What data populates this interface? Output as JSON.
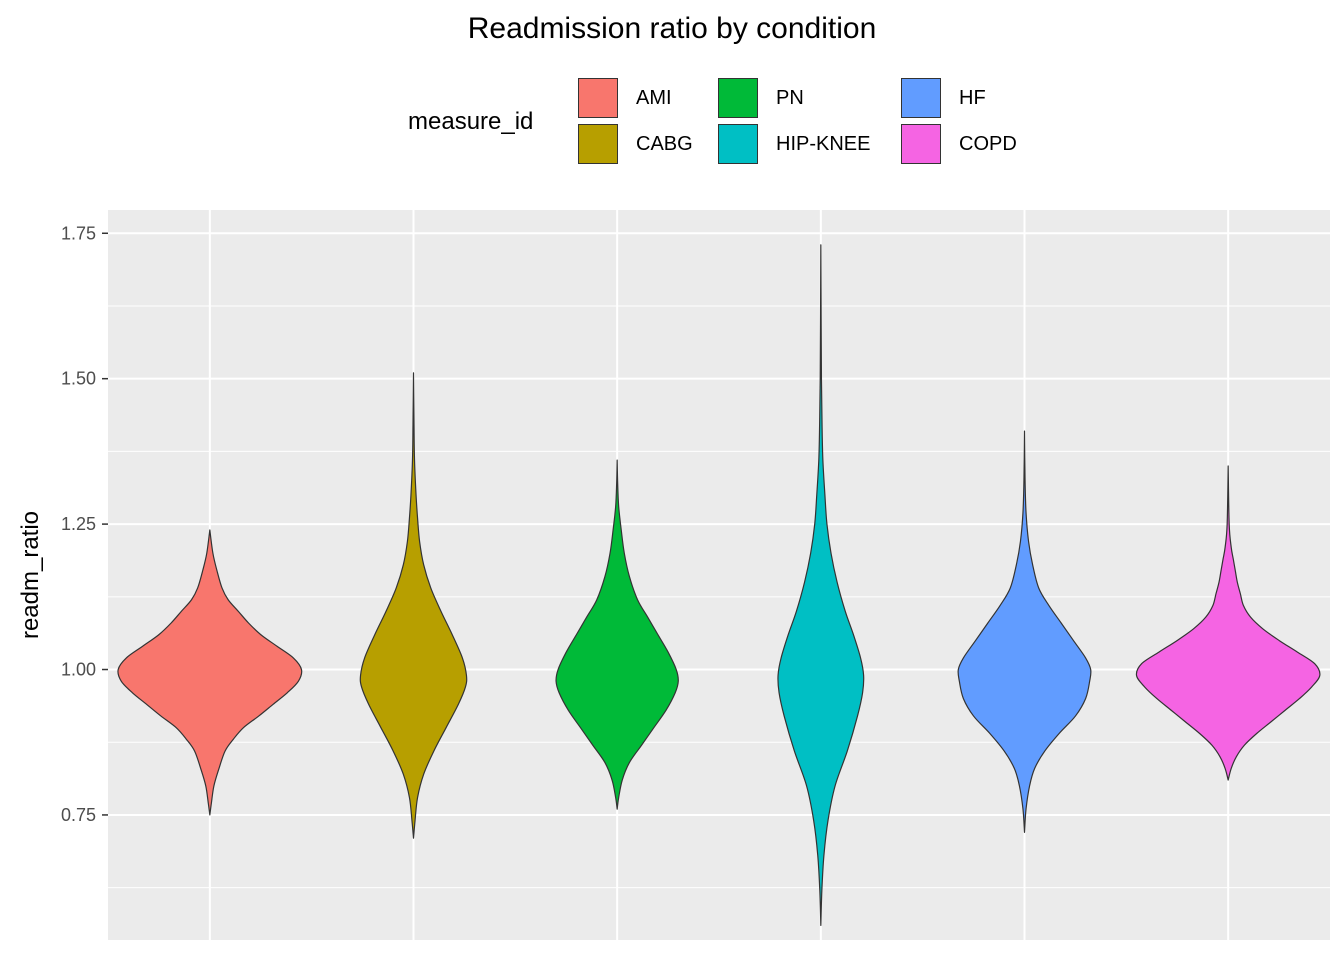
{
  "chart_data": {
    "type": "violin",
    "title": "Readmission ratio by condition",
    "xlabel": "",
    "ylabel": "readm_ratio",
    "ylim": [
      0.535,
      1.79
    ],
    "y_ticks": [
      0.75,
      1.0,
      1.25,
      1.5,
      1.75
    ],
    "y_tick_labels": [
      "0.75",
      "1.00",
      "1.25",
      "1.50",
      "1.75"
    ],
    "grid": true,
    "legend": {
      "title": "measure_id",
      "position": "top",
      "entries": [
        "AMI",
        "CABG",
        "PN",
        "HIP-KNEE",
        "HF",
        "COPD"
      ]
    },
    "series": [
      {
        "name": "AMI",
        "color": "#F8766D",
        "min": 0.75,
        "max": 1.24,
        "max_halfwidth": 0.9,
        "profile": [
          [
            0.75,
            0.0
          ],
          [
            0.77,
            0.015
          ],
          [
            0.8,
            0.04
          ],
          [
            0.83,
            0.09
          ],
          [
            0.86,
            0.15
          ],
          [
            0.88,
            0.23
          ],
          [
            0.9,
            0.33
          ],
          [
            0.92,
            0.48
          ],
          [
            0.94,
            0.62
          ],
          [
            0.96,
            0.76
          ],
          [
            0.98,
            0.87
          ],
          [
            1.0,
            0.9
          ],
          [
            1.02,
            0.82
          ],
          [
            1.04,
            0.66
          ],
          [
            1.06,
            0.5
          ],
          [
            1.08,
            0.38
          ],
          [
            1.1,
            0.28
          ],
          [
            1.12,
            0.18
          ],
          [
            1.14,
            0.12
          ],
          [
            1.17,
            0.07
          ],
          [
            1.2,
            0.03
          ],
          [
            1.24,
            0.0
          ]
        ]
      },
      {
        "name": "CABG",
        "color": "#B79F00",
        "min": 0.71,
        "max": 1.51,
        "max_halfwidth": 0.52,
        "profile": [
          [
            0.71,
            0.0
          ],
          [
            0.74,
            0.015
          ],
          [
            0.78,
            0.04
          ],
          [
            0.82,
            0.1
          ],
          [
            0.86,
            0.2
          ],
          [
            0.9,
            0.32
          ],
          [
            0.94,
            0.44
          ],
          [
            0.97,
            0.51
          ],
          [
            0.99,
            0.52
          ],
          [
            1.02,
            0.48
          ],
          [
            1.06,
            0.38
          ],
          [
            1.1,
            0.27
          ],
          [
            1.14,
            0.17
          ],
          [
            1.18,
            0.1
          ],
          [
            1.22,
            0.06
          ],
          [
            1.26,
            0.04
          ],
          [
            1.3,
            0.025
          ],
          [
            1.36,
            0.01
          ],
          [
            1.42,
            0.005
          ],
          [
            1.51,
            0.0
          ]
        ]
      },
      {
        "name": "PN",
        "color": "#00BA38",
        "min": 0.76,
        "max": 1.36,
        "max_halfwidth": 0.6,
        "profile": [
          [
            0.76,
            0.0
          ],
          [
            0.78,
            0.015
          ],
          [
            0.81,
            0.05
          ],
          [
            0.84,
            0.12
          ],
          [
            0.87,
            0.24
          ],
          [
            0.9,
            0.36
          ],
          [
            0.93,
            0.48
          ],
          [
            0.96,
            0.57
          ],
          [
            0.98,
            0.6
          ],
          [
            1.0,
            0.58
          ],
          [
            1.03,
            0.5
          ],
          [
            1.06,
            0.4
          ],
          [
            1.09,
            0.3
          ],
          [
            1.12,
            0.2
          ],
          [
            1.16,
            0.12
          ],
          [
            1.2,
            0.07
          ],
          [
            1.24,
            0.04
          ],
          [
            1.28,
            0.015
          ],
          [
            1.32,
            0.005
          ],
          [
            1.36,
            0.0
          ]
        ]
      },
      {
        "name": "HIP-KNEE",
        "color": "#00BFC4",
        "min": 0.56,
        "max": 1.73,
        "max_halfwidth": 0.42,
        "profile": [
          [
            0.56,
            0.0
          ],
          [
            0.62,
            0.01
          ],
          [
            0.68,
            0.03
          ],
          [
            0.74,
            0.07
          ],
          [
            0.8,
            0.14
          ],
          [
            0.86,
            0.26
          ],
          [
            0.92,
            0.36
          ],
          [
            0.96,
            0.41
          ],
          [
            0.99,
            0.42
          ],
          [
            1.02,
            0.39
          ],
          [
            1.06,
            0.32
          ],
          [
            1.1,
            0.24
          ],
          [
            1.15,
            0.16
          ],
          [
            1.2,
            0.1
          ],
          [
            1.25,
            0.06
          ],
          [
            1.3,
            0.04
          ],
          [
            1.36,
            0.02
          ],
          [
            1.42,
            0.012
          ],
          [
            1.5,
            0.006
          ],
          [
            1.6,
            0.003
          ],
          [
            1.73,
            0.0
          ]
        ]
      },
      {
        "name": "HF",
        "color": "#619CFF",
        "min": 0.72,
        "max": 1.41,
        "max_halfwidth": 0.65,
        "profile": [
          [
            0.72,
            0.0
          ],
          [
            0.76,
            0.015
          ],
          [
            0.8,
            0.05
          ],
          [
            0.83,
            0.1
          ],
          [
            0.86,
            0.2
          ],
          [
            0.89,
            0.34
          ],
          [
            0.92,
            0.5
          ],
          [
            0.95,
            0.6
          ],
          [
            0.98,
            0.64
          ],
          [
            1.0,
            0.65
          ],
          [
            1.02,
            0.6
          ],
          [
            1.05,
            0.48
          ],
          [
            1.08,
            0.36
          ],
          [
            1.11,
            0.24
          ],
          [
            1.14,
            0.14
          ],
          [
            1.18,
            0.08
          ],
          [
            1.22,
            0.04
          ],
          [
            1.27,
            0.015
          ],
          [
            1.33,
            0.005
          ],
          [
            1.41,
            0.0
          ]
        ]
      },
      {
        "name": "COPD",
        "color": "#F564E3",
        "min": 0.81,
        "max": 1.35,
        "max_halfwidth": 0.9,
        "profile": [
          [
            0.81,
            0.0
          ],
          [
            0.83,
            0.03
          ],
          [
            0.85,
            0.08
          ],
          [
            0.87,
            0.16
          ],
          [
            0.89,
            0.28
          ],
          [
            0.91,
            0.42
          ],
          [
            0.93,
            0.56
          ],
          [
            0.95,
            0.7
          ],
          [
            0.97,
            0.82
          ],
          [
            0.99,
            0.9
          ],
          [
            1.01,
            0.85
          ],
          [
            1.03,
            0.68
          ],
          [
            1.05,
            0.5
          ],
          [
            1.07,
            0.34
          ],
          [
            1.09,
            0.22
          ],
          [
            1.11,
            0.15
          ],
          [
            1.13,
            0.12
          ],
          [
            1.15,
            0.09
          ],
          [
            1.17,
            0.07
          ],
          [
            1.19,
            0.05
          ],
          [
            1.21,
            0.03
          ],
          [
            1.25,
            0.01
          ],
          [
            1.35,
            0.0
          ]
        ]
      }
    ]
  }
}
